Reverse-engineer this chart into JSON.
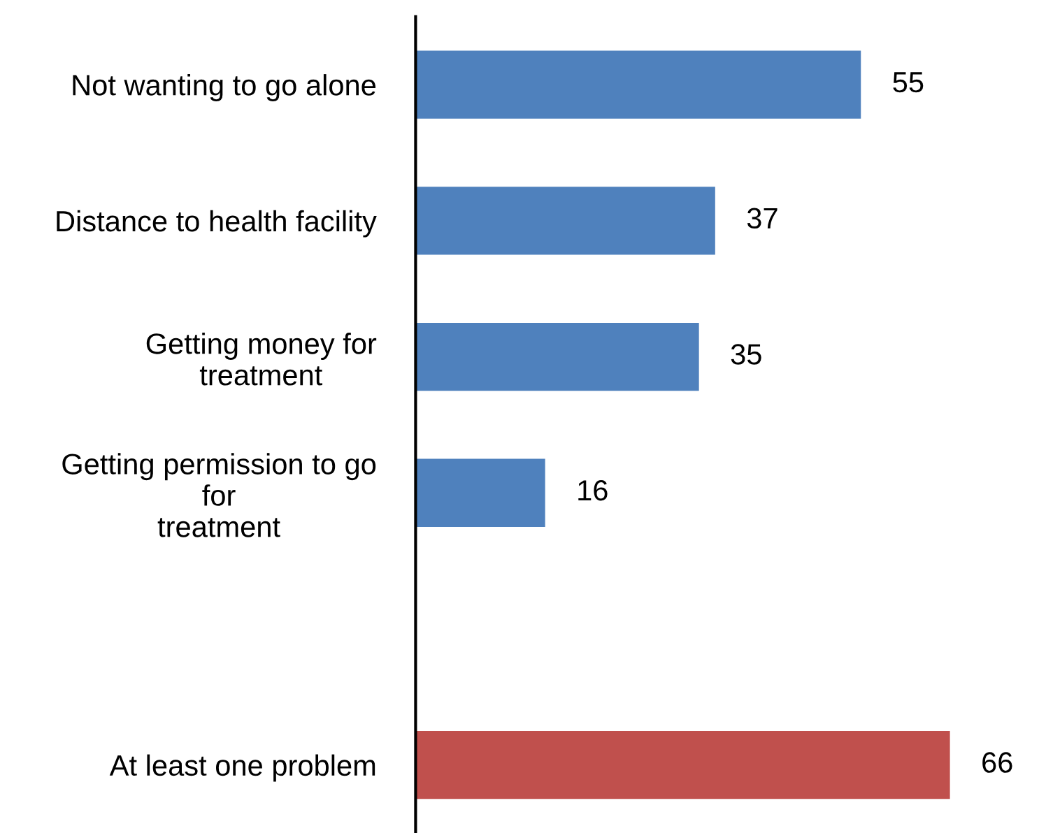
{
  "chart_data": {
    "type": "bar",
    "orientation": "horizontal",
    "categories": [
      "Not wanting to go alone",
      "Distance to health facility",
      "Getting money for\ntreatment",
      "Getting permission to go\nfor\ntreatment",
      null,
      "At least one problem"
    ],
    "values": [
      55,
      37,
      35,
      16,
      null,
      66
    ],
    "colors": [
      "#4f81bd",
      "#4f81bd",
      "#4f81bd",
      "#4f81bd",
      "#4f81bd",
      "#c0504d"
    ],
    "tick_labels": "y",
    "data_labels": true,
    "grid": false,
    "legend": false
  }
}
